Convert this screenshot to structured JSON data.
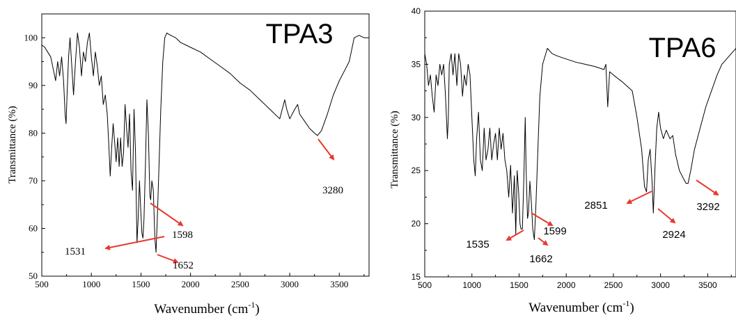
{
  "chart_data": [
    {
      "type": "line",
      "title": "TPA3",
      "xlabel": "Wavenumber (cm",
      "xlabel_sup": "-1",
      "xlabel_close": ")",
      "ylabel": "Transmittance (%)",
      "xlim": [
        500,
        3800
      ],
      "ylim": [
        50,
        105
      ],
      "xticks": [
        500,
        1000,
        1500,
        2000,
        2500,
        3000,
        3500
      ],
      "yticks": [
        50,
        60,
        70,
        80,
        90,
        100
      ],
      "series": [
        {
          "color": "#000000",
          "x": [
            500,
            530,
            560,
            590,
            620,
            640,
            660,
            680,
            700,
            720,
            735,
            745,
            755,
            770,
            785,
            800,
            820,
            840,
            860,
            880,
            900,
            920,
            940,
            960,
            980,
            1000,
            1020,
            1040,
            1060,
            1080,
            1100,
            1120,
            1140,
            1160,
            1175,
            1190,
            1205,
            1220,
            1235,
            1250,
            1265,
            1280,
            1295,
            1310,
            1325,
            1340,
            1355,
            1370,
            1385,
            1400,
            1415,
            1430,
            1445,
            1460,
            1472,
            1485,
            1498,
            1510,
            1520,
            1531,
            1545,
            1560,
            1575,
            1590,
            1598,
            1610,
            1625,
            1640,
            1652,
            1665,
            1680,
            1700,
            1720,
            1740,
            1760,
            1800,
            1850,
            1900,
            2000,
            2100,
            2200,
            2300,
            2400,
            2500,
            2600,
            2700,
            2800,
            2900,
            2950,
            2970,
            3000,
            3050,
            3080,
            3100,
            3150,
            3200,
            3250,
            3280,
            3320,
            3380,
            3440,
            3500,
            3550,
            3600,
            3620,
            3650,
            3700,
            3750,
            3800
          ],
          "y": [
            98.5,
            98,
            97,
            96,
            93,
            91,
            95,
            92,
            96,
            91,
            84,
            82,
            88,
            96,
            100,
            95,
            88,
            95,
            101,
            98,
            92,
            97,
            95,
            99,
            101,
            96,
            92,
            97,
            94,
            90,
            92,
            86,
            88,
            84,
            78,
            71,
            77,
            82,
            78,
            74,
            79,
            73,
            79,
            73,
            76,
            86,
            81,
            77,
            84,
            72,
            68,
            85,
            76,
            57,
            62,
            70,
            64,
            59,
            58,
            62,
            73,
            87,
            80,
            67,
            66,
            70,
            68,
            58,
            55,
            62,
            72,
            85,
            95,
            100,
            101,
            100.5,
            100,
            99,
            98,
            97,
            95.5,
            94,
            92.5,
            90.5,
            89,
            87,
            85,
            83,
            87,
            85,
            83,
            85,
            86,
            84,
            82.5,
            81,
            80,
            79.5,
            80.5,
            84,
            88,
            91,
            93,
            95,
            97,
            100,
            100.5,
            100,
            100
          ]
        }
      ],
      "annotations": [
        {
          "label": "1531",
          "x": 1531,
          "y": 58.5
        },
        {
          "label": "1598",
          "x": 1598,
          "y": 66
        },
        {
          "label": "1652",
          "x": 1652,
          "y": 55
        },
        {
          "label": "3280",
          "x": 3280,
          "y": 79.5
        }
      ]
    },
    {
      "type": "line",
      "title": "TPA6",
      "xlabel": "Wavenumber (cm",
      "xlabel_sup": "-1",
      "xlabel_close": ")",
      "ylabel": "Transmittance (%)",
      "xlim": [
        500,
        3800
      ],
      "ylim": [
        15,
        40
      ],
      "xticks": [
        500,
        1000,
        1500,
        2000,
        2500,
        3000,
        3500
      ],
      "yticks": [
        15,
        20,
        25,
        30,
        35,
        40
      ],
      "series": [
        {
          "color": "#000000",
          "x": [
            500,
            520,
            540,
            560,
            580,
            600,
            620,
            640,
            660,
            680,
            700,
            720,
            740,
            750,
            760,
            780,
            800,
            820,
            840,
            860,
            880,
            900,
            920,
            940,
            960,
            980,
            1000,
            1020,
            1035,
            1050,
            1070,
            1090,
            1110,
            1130,
            1150,
            1170,
            1190,
            1210,
            1230,
            1250,
            1270,
            1290,
            1310,
            1330,
            1350,
            1370,
            1390,
            1410,
            1430,
            1450,
            1465,
            1480,
            1495,
            1510,
            1520,
            1535,
            1550,
            1565,
            1575,
            1590,
            1599,
            1615,
            1630,
            1645,
            1662,
            1680,
            1700,
            1720,
            1750,
            1800,
            1850,
            1900,
            2000,
            2100,
            2200,
            2300,
            2400,
            2420,
            2440,
            2460,
            2500,
            2600,
            2700,
            2750,
            2800,
            2830,
            2851,
            2870,
            2890,
            2910,
            2924,
            2940,
            2960,
            2980,
            3000,
            3030,
            3060,
            3100,
            3130,
            3160,
            3200,
            3240,
            3270,
            3292,
            3320,
            3360,
            3420,
            3480,
            3540,
            3600,
            3650,
            3700,
            3750,
            3800
          ],
          "y": [
            36,
            35,
            33,
            34,
            32,
            30.5,
            34,
            33,
            35,
            34,
            35,
            32,
            28,
            30,
            35,
            36,
            34,
            36,
            33,
            36,
            35,
            32,
            34,
            33,
            35,
            34,
            30,
            26,
            24.5,
            28,
            30.5,
            26,
            25,
            29,
            26,
            27,
            29,
            26,
            27.5,
            28.5,
            26,
            29,
            27,
            28.5,
            26,
            25,
            22.5,
            25.5,
            21,
            24.5,
            19,
            25,
            23,
            20,
            19.5,
            19.5,
            24,
            30,
            25,
            20.5,
            21,
            24,
            22,
            19.5,
            18.5,
            22,
            27,
            32,
            35,
            36.5,
            36,
            35.8,
            35.5,
            35.2,
            35,
            34.8,
            34.5,
            35,
            31,
            34.3,
            34,
            33.3,
            32.5,
            30,
            27,
            23.5,
            23,
            26,
            27,
            24,
            21,
            25,
            29,
            30.5,
            29,
            28,
            28.8,
            28,
            28.3,
            26.5,
            25,
            24.3,
            23.8,
            23.8,
            25,
            27,
            29,
            31,
            32.5,
            34,
            35,
            35.5,
            36,
            36.5
          ]
        }
      ],
      "annotations": [
        {
          "label": "1535",
          "x": 1535,
          "y": 19.2
        },
        {
          "label": "1599",
          "x": 1599,
          "y": 20.5
        },
        {
          "label": "1662",
          "x": 1662,
          "y": 18.5
        },
        {
          "label": "2851",
          "x": 2851,
          "y": 23
        },
        {
          "label": "2924",
          "x": 2924,
          "y": 21
        },
        {
          "label": "3292",
          "x": 3292,
          "y": 23.8
        }
      ]
    }
  ],
  "colors": {
    "arrow": "#e8382e",
    "line": "#000000",
    "axis": "#000000"
  }
}
